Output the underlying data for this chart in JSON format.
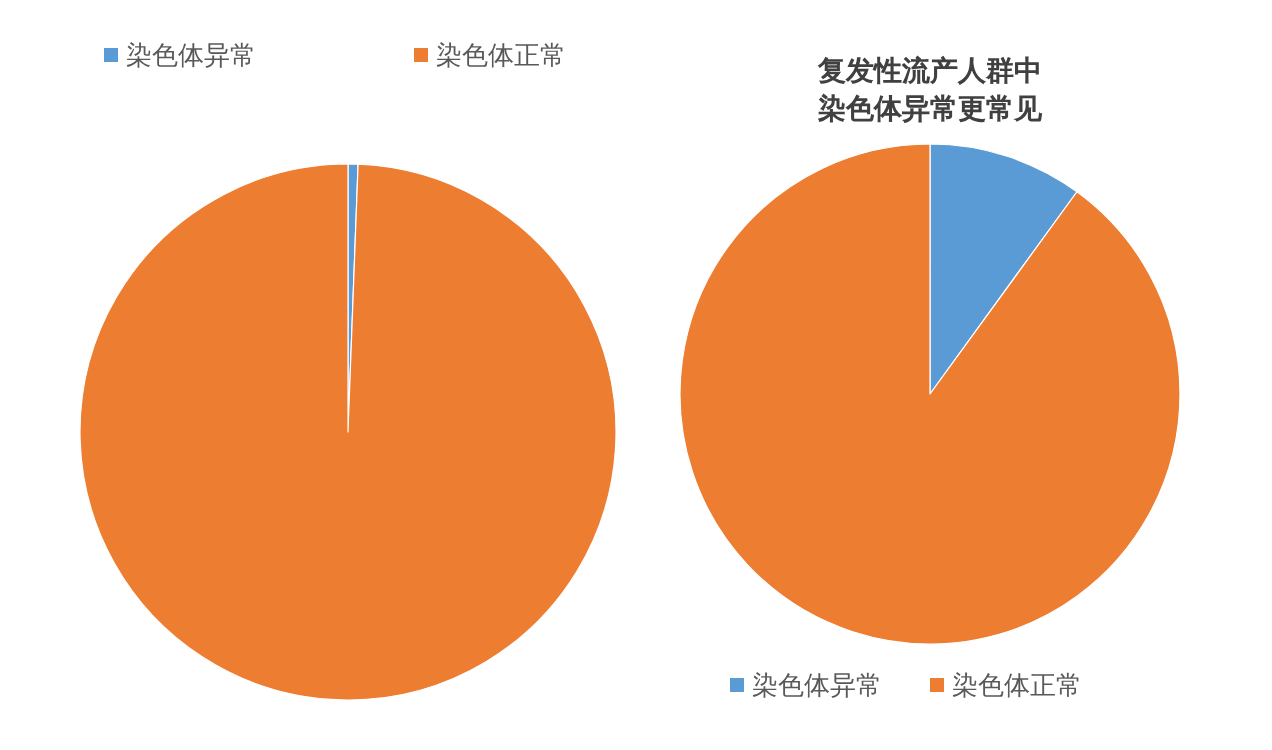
{
  "chart_data": [
    {
      "type": "pie",
      "categories": [
        "染色体异常",
        "染色体正常"
      ],
      "values": [
        0.6,
        99.4
      ],
      "colors": [
        "#5b9bd5",
        "#ed7d31"
      ],
      "legend": "top"
    },
    {
      "type": "pie",
      "title": "复发性流产人群中染色体异常更常见",
      "categories": [
        "染色体异常",
        "染色体正常"
      ],
      "values": [
        10,
        90
      ],
      "colors": [
        "#5b9bd5",
        "#ed7d31"
      ],
      "legend": "bottom"
    }
  ]
}
